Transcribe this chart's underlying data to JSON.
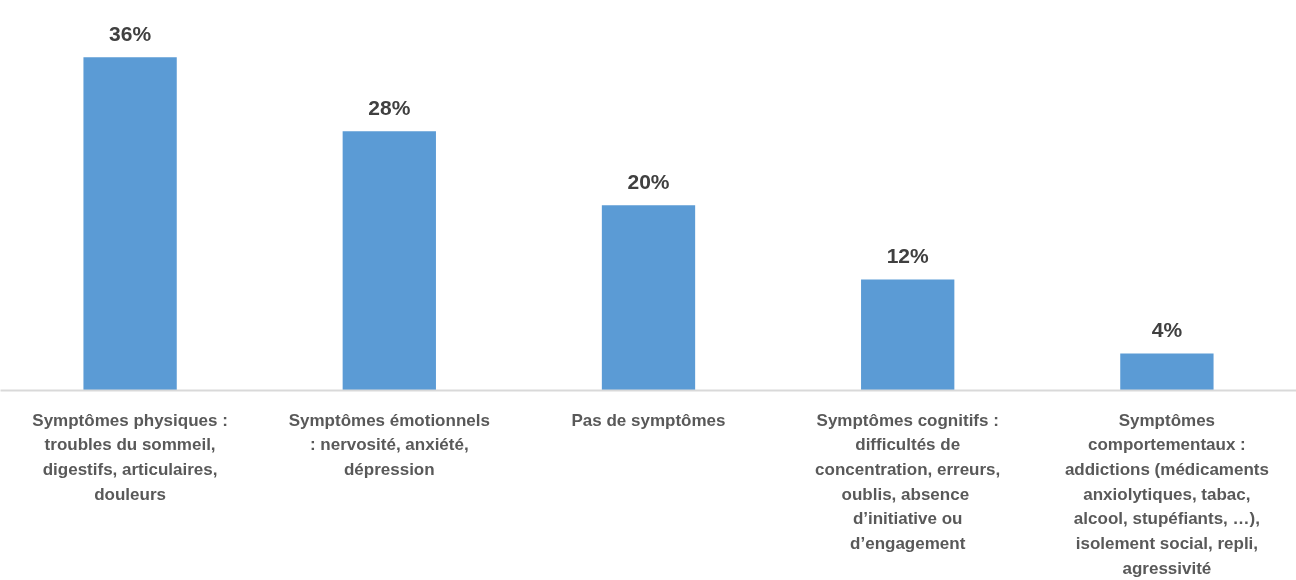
{
  "chart_data": {
    "type": "bar",
    "categories": [
      "Symptômes physiques :\ntroubles du sommeil,\ndigestifs, articulaires,\ndouleurs",
      "Symptômes émotionnels\n: nervosité, anxiété,\ndépression",
      "Pas de symptômes",
      "Symptômes cognitifs :\ndifficultés de\nconcentration, erreurs,\noublis,  absence\nd’initiative ou\nd’engagement",
      "Symptômes\ncomportementaux :\naddictions (médicaments\nanxiolytiques, tabac,\nalcool, stupéfiants, …),\nisolement social, repli,\nagressivité"
    ],
    "values": [
      36,
      28,
      20,
      12,
      4
    ],
    "value_labels": [
      "36%",
      "28%",
      "20%",
      "12%",
      "4%"
    ],
    "color": "#5b9bd5",
    "tick_labels": "x"
  }
}
